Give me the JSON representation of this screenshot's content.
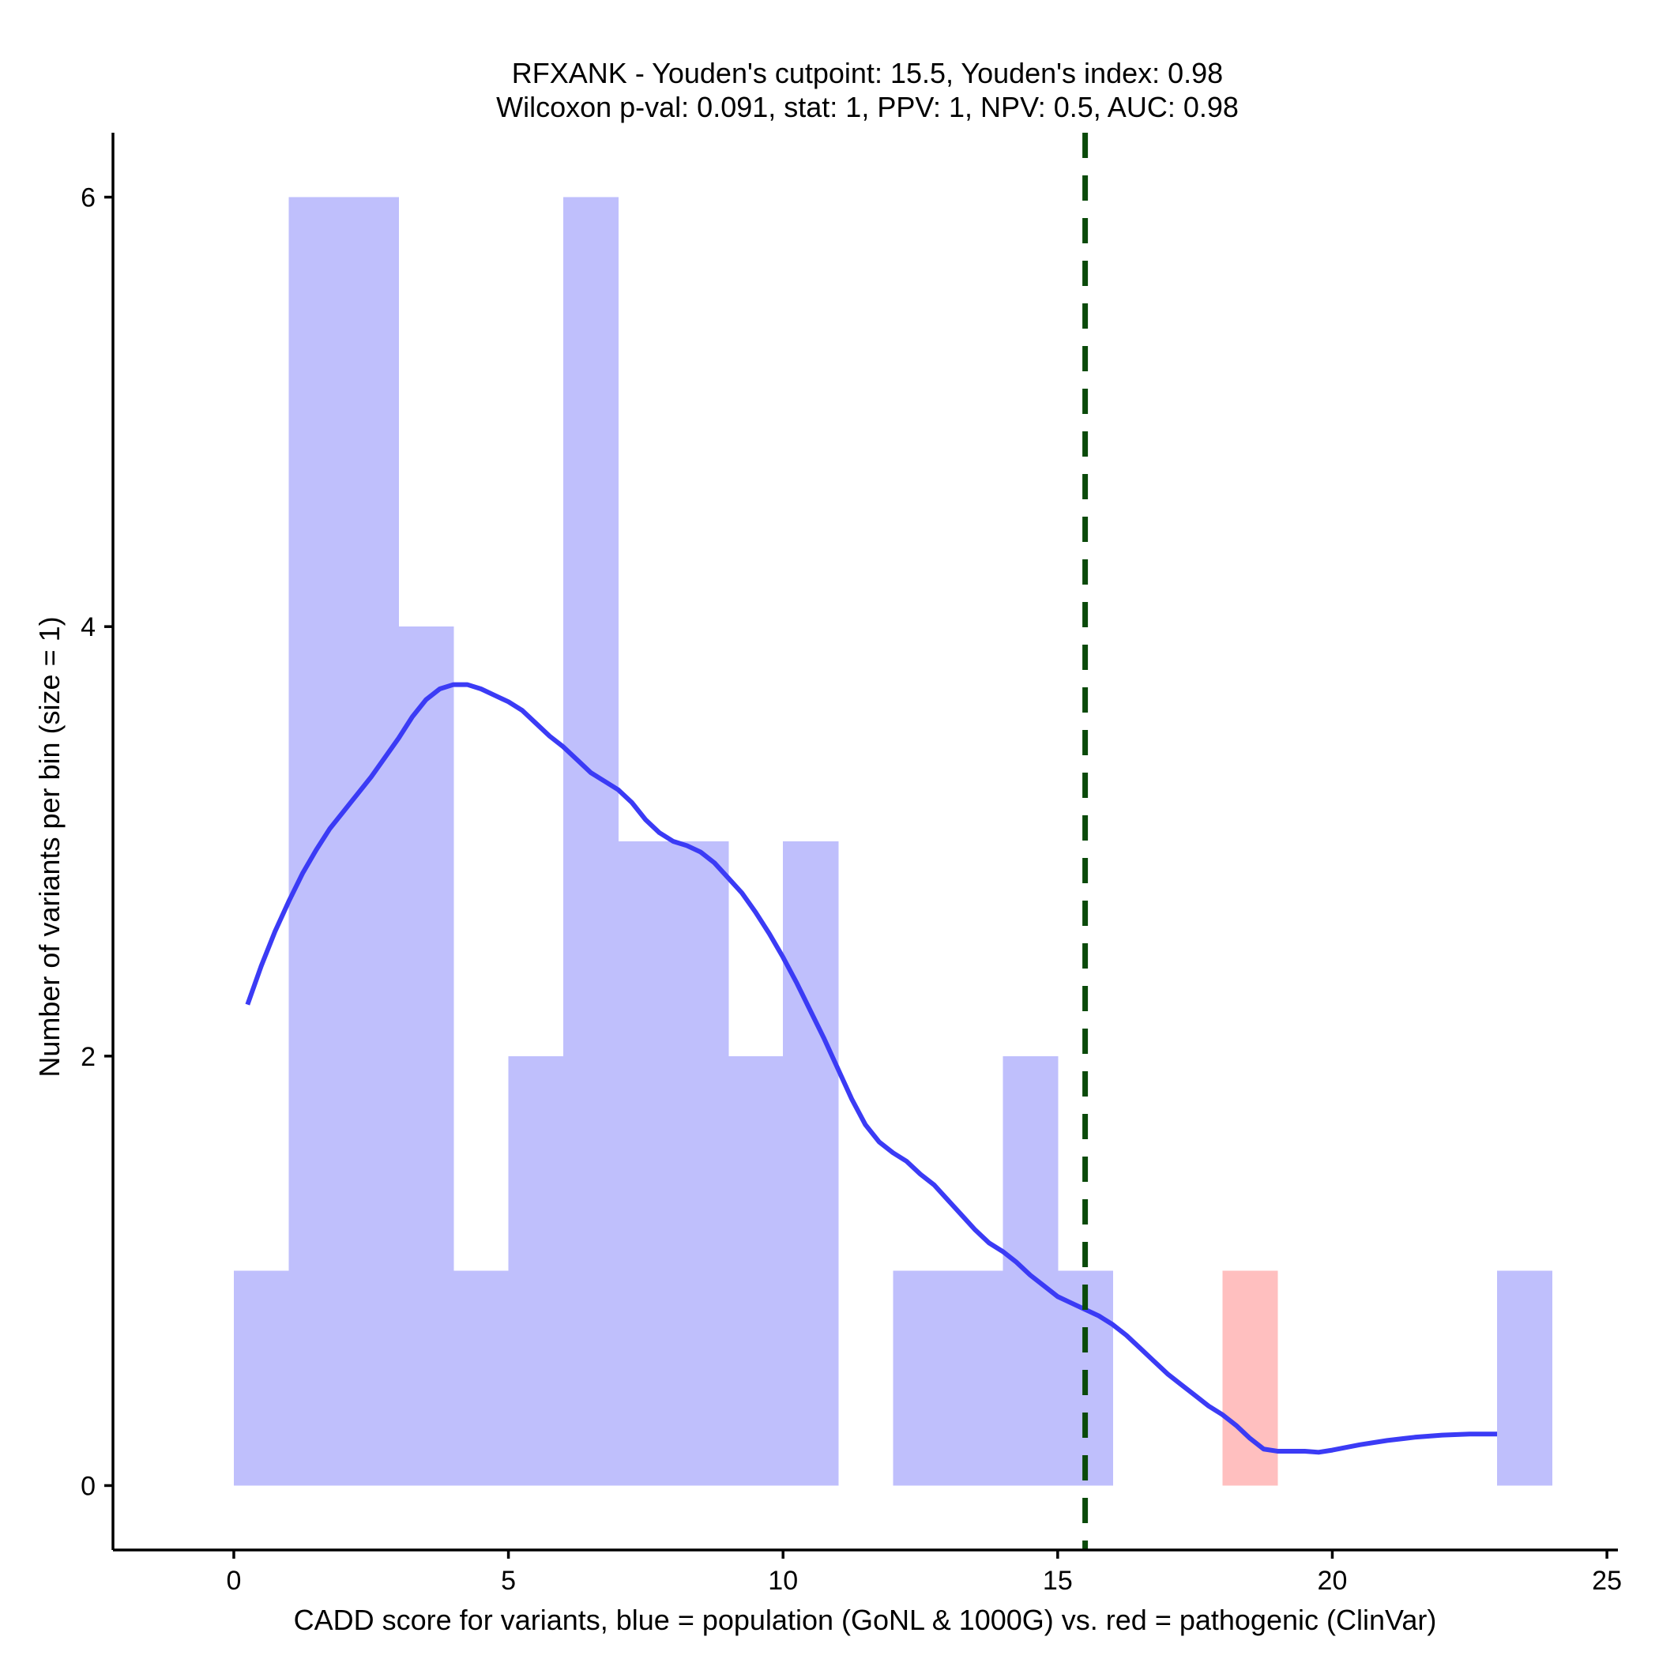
{
  "chart_data": {
    "type": "bar",
    "title": [
      "RFXANK - Youden's cutpoint: 15.5, Youden's index: 0.98",
      "Wilcoxon p-val: 0.091, stat: 1, PPV: 1, NPV: 0.5, AUC: 0.98"
    ],
    "xlabel": "CADD score for variants, blue = population (GoNL & 1000G) vs. red = pathogenic (ClinVar)",
    "ylabel": "Number of variants per bin (size = 1)",
    "xlim": [
      -2.2,
      25.2
    ],
    "ylim": [
      -0.3,
      6.3
    ],
    "x_ticks": [
      0,
      5,
      10,
      15,
      20,
      25
    ],
    "y_ticks": [
      0,
      2,
      4,
      6
    ],
    "bin_size": 1,
    "cutpoint": 15.5,
    "series": [
      {
        "name": "population (GoNL & 1000G)",
        "color": "#bfbffc",
        "bins": [
          {
            "x0": 0,
            "x1": 1,
            "count": 1
          },
          {
            "x0": 1,
            "x1": 2,
            "count": 6
          },
          {
            "x0": 2,
            "x1": 3,
            "count": 6
          },
          {
            "x0": 3,
            "x1": 4,
            "count": 4
          },
          {
            "x0": 4,
            "x1": 5,
            "count": 1
          },
          {
            "x0": 5,
            "x1": 6,
            "count": 2
          },
          {
            "x0": 6,
            "x1": 7,
            "count": 6
          },
          {
            "x0": 7,
            "x1": 8,
            "count": 3
          },
          {
            "x0": 8,
            "x1": 9,
            "count": 3
          },
          {
            "x0": 9,
            "x1": 10,
            "count": 2
          },
          {
            "x0": 10,
            "x1": 11,
            "count": 3
          },
          {
            "x0": 12,
            "x1": 13,
            "count": 1
          },
          {
            "x0": 13,
            "x1": 14,
            "count": 1
          },
          {
            "x0": 14,
            "x1": 15,
            "count": 2
          },
          {
            "x0": 15,
            "x1": 16,
            "count": 1
          },
          {
            "x0": 23,
            "x1": 24,
            "count": 1
          }
        ]
      },
      {
        "name": "pathogenic (ClinVar)",
        "color": "#ffbfbf",
        "bins": [
          {
            "x0": 18,
            "x1": 19,
            "count": 1
          }
        ]
      }
    ],
    "density_curve": {
      "color": "#3b3bf5",
      "points": [
        [
          0.25,
          2.24
        ],
        [
          0.5,
          2.42
        ],
        [
          0.75,
          2.58
        ],
        [
          1.0,
          2.72
        ],
        [
          1.25,
          2.85
        ],
        [
          1.5,
          2.96
        ],
        [
          1.75,
          3.06
        ],
        [
          2.0,
          3.14
        ],
        [
          2.25,
          3.22
        ],
        [
          2.5,
          3.3
        ],
        [
          2.75,
          3.39
        ],
        [
          3.0,
          3.48
        ],
        [
          3.25,
          3.58
        ],
        [
          3.5,
          3.66
        ],
        [
          3.75,
          3.71
        ],
        [
          4.0,
          3.73
        ],
        [
          4.25,
          3.73
        ],
        [
          4.5,
          3.71
        ],
        [
          4.75,
          3.68
        ],
        [
          5.0,
          3.65
        ],
        [
          5.25,
          3.61
        ],
        [
          5.5,
          3.55
        ],
        [
          5.75,
          3.49
        ],
        [
          6.0,
          3.44
        ],
        [
          6.25,
          3.38
        ],
        [
          6.5,
          3.32
        ],
        [
          6.75,
          3.28
        ],
        [
          7.0,
          3.24
        ],
        [
          7.25,
          3.18
        ],
        [
          7.5,
          3.1
        ],
        [
          7.75,
          3.04
        ],
        [
          8.0,
          3.0
        ],
        [
          8.25,
          2.98
        ],
        [
          8.5,
          2.95
        ],
        [
          8.75,
          2.9
        ],
        [
          9.0,
          2.83
        ],
        [
          9.25,
          2.76
        ],
        [
          9.5,
          2.67
        ],
        [
          9.75,
          2.57
        ],
        [
          10.0,
          2.46
        ],
        [
          10.25,
          2.34
        ],
        [
          10.5,
          2.21
        ],
        [
          10.75,
          2.08
        ],
        [
          11.0,
          1.94
        ],
        [
          11.25,
          1.8
        ],
        [
          11.5,
          1.68
        ],
        [
          11.75,
          1.6
        ],
        [
          12.0,
          1.55
        ],
        [
          12.25,
          1.51
        ],
        [
          12.5,
          1.45
        ],
        [
          12.75,
          1.4
        ],
        [
          13.0,
          1.33
        ],
        [
          13.25,
          1.26
        ],
        [
          13.5,
          1.19
        ],
        [
          13.75,
          1.13
        ],
        [
          14.0,
          1.09
        ],
        [
          14.25,
          1.04
        ],
        [
          14.5,
          0.98
        ],
        [
          14.75,
          0.93
        ],
        [
          15.0,
          0.88
        ],
        [
          15.25,
          0.85
        ],
        [
          15.5,
          0.82
        ],
        [
          15.75,
          0.79
        ],
        [
          16.0,
          0.75
        ],
        [
          16.25,
          0.7
        ],
        [
          16.5,
          0.64
        ],
        [
          16.75,
          0.58
        ],
        [
          17.0,
          0.52
        ],
        [
          17.25,
          0.47
        ],
        [
          17.5,
          0.42
        ],
        [
          17.75,
          0.37
        ],
        [
          18.0,
          0.33
        ],
        [
          18.25,
          0.28
        ],
        [
          18.5,
          0.22
        ],
        [
          18.75,
          0.17
        ],
        [
          19.0,
          0.16
        ],
        [
          19.25,
          0.16
        ],
        [
          19.5,
          0.16
        ],
        [
          19.75,
          0.155
        ],
        [
          20.0,
          0.165
        ],
        [
          20.5,
          0.19
        ],
        [
          21.0,
          0.21
        ],
        [
          21.5,
          0.225
        ],
        [
          22.0,
          0.235
        ],
        [
          22.5,
          0.24
        ],
        [
          23.0,
          0.24
        ]
      ]
    },
    "grid": false,
    "legend": "none"
  }
}
